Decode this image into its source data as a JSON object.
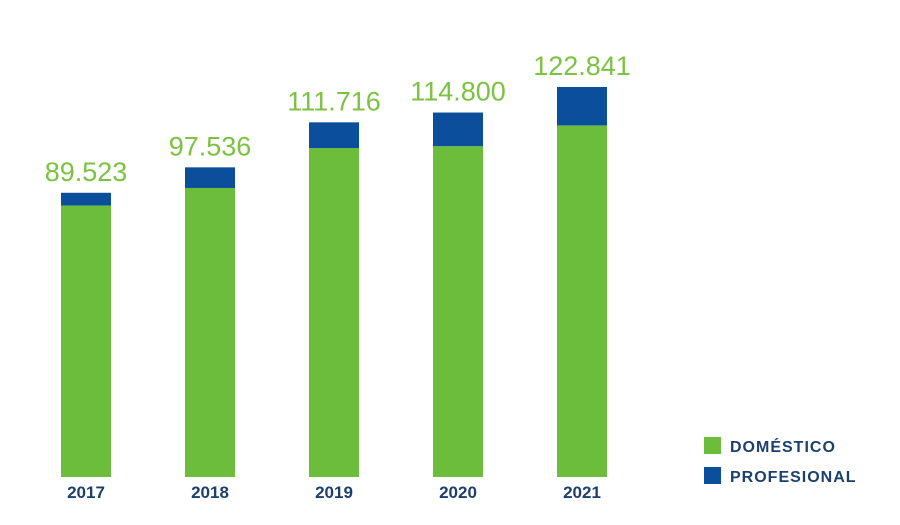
{
  "chart_data": {
    "type": "stacked_bar",
    "categories": [
      "2017",
      "2018",
      "2019",
      "2020",
      "2021"
    ],
    "series": [
      {
        "name": "DOMÉSTICO",
        "color": "#6cbd3c",
        "values": [
          85523,
          91036,
          103616,
          104200,
          110741
        ]
      },
      {
        "name": "PROFESIONAL",
        "color": "#0b4f9c",
        "values": [
          4000,
          6500,
          8100,
          10600,
          12100
        ]
      }
    ],
    "totals": {
      "values": [
        89523,
        97536,
        111716,
        114800,
        122841
      ],
      "value_labels": [
        "89.523",
        "97.536",
        "111.716",
        "114.800",
        "122.841"
      ]
    },
    "legend": "bottom-right"
  }
}
